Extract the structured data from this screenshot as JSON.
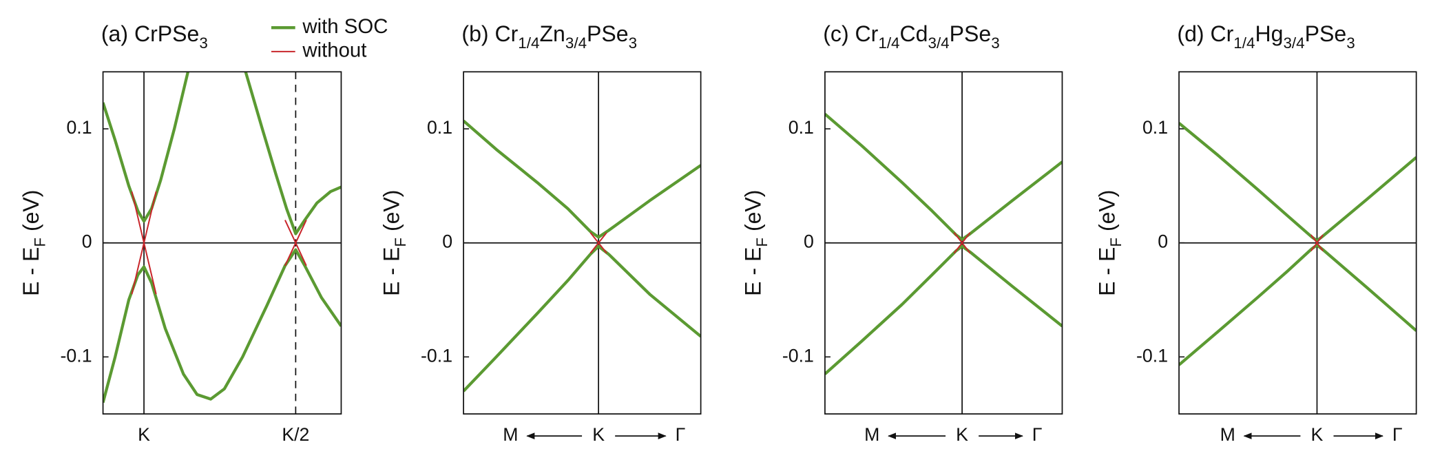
{
  "chart_data": [
    {
      "type": "line",
      "title": [
        {
          "text": "(a) CrPSe"
        },
        {
          "sub": "3"
        }
      ],
      "ylabel": [
        {
          "text": "E - E"
        },
        {
          "sub": "F"
        },
        {
          "text": " (eV)"
        }
      ],
      "xlim": [
        -0.27,
        1.3
      ],
      "ylim": [
        -0.15,
        0.15
      ],
      "yticks": [
        -0.1,
        0,
        0.1
      ],
      "xticks": [
        {
          "value": 0,
          "label": "K"
        },
        {
          "value": 1,
          "label": "K/2"
        }
      ],
      "vlines": [
        {
          "x": 0,
          "dash": false
        },
        {
          "x": 1,
          "dash": true
        }
      ],
      "hlines": [
        0
      ],
      "x_arrows": false,
      "legend": "above-right",
      "series": [
        {
          "name": "with SOC",
          "color": "#5b9a32",
          "x": [
            -0.27,
            -0.19,
            -0.1,
            -0.04,
            0,
            0.05,
            0.11,
            0.2,
            0.29,
            null,
            0.67,
            0.78,
            0.87,
            0.94,
            1.0,
            1.06,
            1.14,
            1.23,
            1.3,
            null,
            -0.27,
            -0.19,
            -0.1,
            -0.04,
            0,
            0.05,
            0.14,
            0.26,
            0.35,
            0.44,
            0.53,
            0.65,
            0.81,
            0.93,
            1.0,
            1.06,
            1.17,
            1.3
          ],
          "values": [
            0.123,
            0.09,
            0.05,
            0.028,
            0.019,
            0.03,
            0.055,
            0.1,
            0.15,
            null,
            0.15,
            0.1,
            0.06,
            0.03,
            0.008,
            0.02,
            0.035,
            0.045,
            0.049,
            null,
            -0.14,
            -0.1,
            -0.05,
            -0.028,
            -0.021,
            -0.035,
            -0.075,
            -0.115,
            -0.133,
            -0.137,
            -0.128,
            -0.1,
            -0.055,
            -0.02,
            -0.006,
            -0.02,
            -0.048,
            -0.073
          ]
        },
        {
          "name": "without",
          "color": "#c8262b",
          "x": [
            -0.08,
            0.08,
            null,
            -0.08,
            0.08,
            null,
            0.93,
            1.07,
            null,
            0.93,
            1.07
          ],
          "values": [
            0.045,
            -0.045,
            null,
            -0.045,
            0.045,
            null,
            0.02,
            -0.02,
            null,
            -0.02,
            0.02
          ]
        }
      ]
    },
    {
      "type": "line",
      "title": [
        {
          "text": "(b) Cr"
        },
        {
          "sub": "1/4"
        },
        {
          "text": "Zn"
        },
        {
          "sub": "3/4"
        },
        {
          "text": "PSe"
        },
        {
          "sub": "3"
        }
      ],
      "ylabel": [
        {
          "text": "E - E"
        },
        {
          "sub": "F"
        },
        {
          "text": " (eV)"
        }
      ],
      "xlim": [
        -1.32,
        1
      ],
      "ylim": [
        -0.15,
        0.15
      ],
      "yticks": [
        -0.1,
        0,
        0.1
      ],
      "xticks": [
        {
          "value": -0.86,
          "label": "M"
        },
        {
          "value": 0,
          "label": "K"
        },
        {
          "value": 0.8,
          "label": "Γ"
        }
      ],
      "vlines": [
        {
          "x": 0,
          "dash": false
        }
      ],
      "hlines": [
        0
      ],
      "x_arrows": true,
      "series": [
        {
          "color": "#5b9a32",
          "x": [
            -1.32,
            -1.0,
            -0.6,
            -0.3,
            -0.08,
            0,
            0.1,
            0.5,
            1.0,
            null,
            -1.32,
            -1.0,
            -0.6,
            -0.3,
            -0.08,
            0,
            0.1,
            0.5,
            1.0
          ],
          "values": [
            0.107,
            0.082,
            0.053,
            0.03,
            0.01,
            0.005,
            0.011,
            0.037,
            0.068,
            null,
            -0.13,
            -0.1,
            -0.062,
            -0.033,
            -0.01,
            -0.003,
            -0.01,
            -0.045,
            -0.082
          ]
        },
        {
          "color": "#c8262b",
          "x": [
            -0.08,
            0.08,
            null,
            -0.08,
            0.08
          ],
          "values": [
            0.009,
            -0.009,
            null,
            -0.009,
            0.009
          ]
        }
      ]
    },
    {
      "type": "line",
      "title": [
        {
          "text": "(c) Cr"
        },
        {
          "sub": "1/4"
        },
        {
          "text": "Cd"
        },
        {
          "sub": "3/4"
        },
        {
          "text": "PSe"
        },
        {
          "sub": "3"
        }
      ],
      "ylabel": [
        {
          "text": "E - E"
        },
        {
          "sub": "F"
        },
        {
          "text": " (eV)"
        }
      ],
      "xlim": [
        -1.37,
        1
      ],
      "ylim": [
        -0.15,
        0.15
      ],
      "yticks": [
        -0.1,
        0,
        0.1
      ],
      "xticks": [
        {
          "value": -0.9,
          "label": "M"
        },
        {
          "value": 0,
          "label": "K"
        },
        {
          "value": 0.75,
          "label": "Γ"
        }
      ],
      "vlines": [
        {
          "x": 0,
          "dash": false
        }
      ],
      "hlines": [
        0
      ],
      "x_arrows": true,
      "series": [
        {
          "color": "#5b9a32",
          "x": [
            -1.37,
            -1.0,
            -0.6,
            -0.3,
            -0.06,
            0,
            0.08,
            0.5,
            1.0,
            null,
            -1.37,
            -1.0,
            -0.6,
            -0.3,
            -0.06,
            0,
            0.08,
            0.5,
            1.0
          ],
          "values": [
            0.113,
            0.085,
            0.053,
            0.028,
            0.007,
            0.003,
            0.008,
            0.037,
            0.071,
            null,
            -0.115,
            -0.086,
            -0.054,
            -0.028,
            -0.007,
            -0.003,
            -0.008,
            -0.038,
            -0.073
          ]
        },
        {
          "color": "#c8262b",
          "x": [
            -0.08,
            0.08,
            null,
            -0.08,
            0.08
          ],
          "values": [
            0.009,
            -0.009,
            null,
            -0.009,
            0.009
          ]
        }
      ]
    },
    {
      "type": "line",
      "title": [
        {
          "text": "(d) Cr"
        },
        {
          "sub": "1/4"
        },
        {
          "text": "Hg"
        },
        {
          "sub": "3/4"
        },
        {
          "text": "PSe"
        },
        {
          "sub": "3"
        }
      ],
      "ylabel": [
        {
          "text": "E - E"
        },
        {
          "sub": "F"
        },
        {
          "text": " (eV)"
        }
      ],
      "xlim": [
        -1.39,
        1
      ],
      "ylim": [
        -0.15,
        0.15
      ],
      "yticks": [
        -0.1,
        0,
        0.1
      ],
      "xticks": [
        {
          "value": -0.9,
          "label": "M"
        },
        {
          "value": 0,
          "label": "K"
        },
        {
          "value": 0.81,
          "label": "Γ"
        }
      ],
      "vlines": [
        {
          "x": 0,
          "dash": false
        }
      ],
      "hlines": [
        0
      ],
      "x_arrows": true,
      "series": [
        {
          "color": "#5b9a32",
          "x": [
            -1.39,
            -1.0,
            -0.6,
            -0.3,
            -0.05,
            0,
            0.06,
            0.5,
            1.0,
            null,
            -1.39,
            -1.0,
            -0.6,
            -0.3,
            -0.05,
            0,
            0.06,
            0.5,
            1.0
          ],
          "values": [
            0.105,
            0.077,
            0.047,
            0.024,
            0.005,
            0.002,
            0.006,
            0.038,
            0.075,
            null,
            -0.107,
            -0.078,
            -0.048,
            -0.025,
            -0.005,
            -0.002,
            -0.006,
            -0.039,
            -0.077
          ]
        },
        {
          "color": "#c8262b",
          "x": [
            -0.06,
            0.06,
            null,
            -0.06,
            0.06
          ],
          "values": [
            0.007,
            -0.007,
            null,
            -0.007,
            0.007
          ]
        }
      ]
    }
  ]
}
